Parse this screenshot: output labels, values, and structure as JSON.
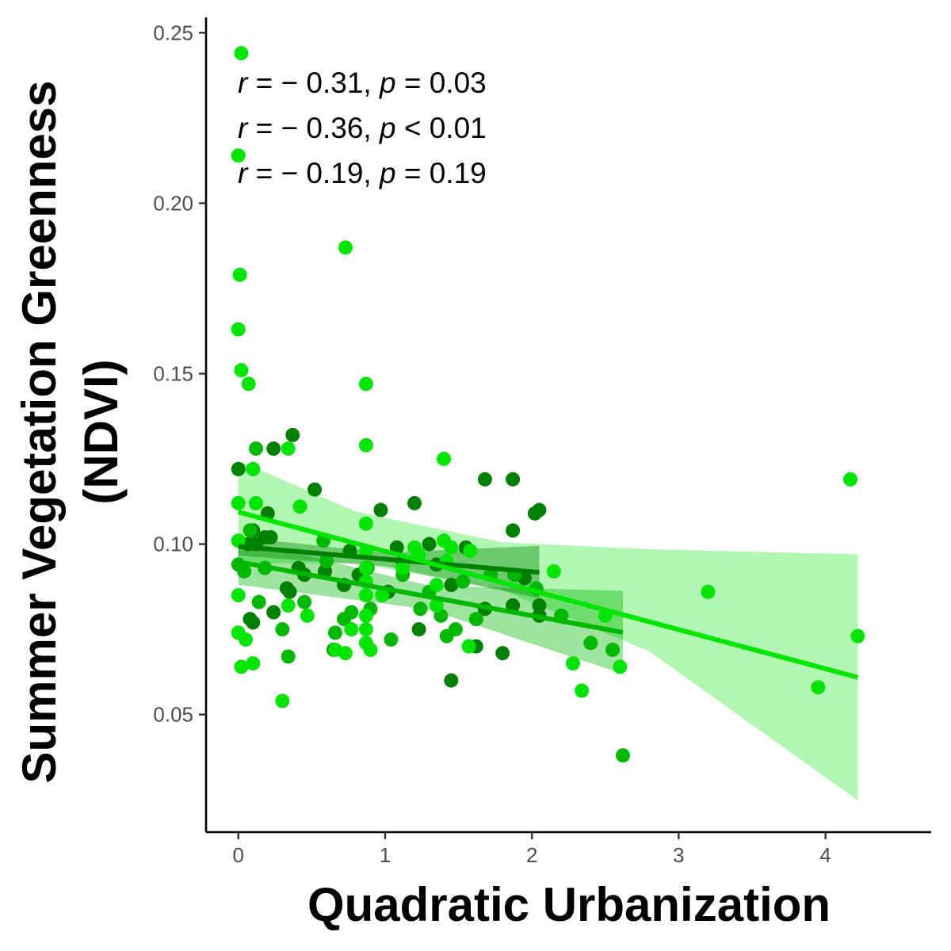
{
  "chart_data": {
    "type": "scatter",
    "xlabel": "Quadratic Urbanization",
    "ylabel_lines": [
      "Summer Vegetation Greenness",
      "(NDVI)"
    ],
    "xlim": [
      -0.22,
      4.72
    ],
    "ylim": [
      0.0155,
      0.2545
    ],
    "x_ticks": [
      0,
      1,
      2,
      3,
      4
    ],
    "x_tick_labels": [
      "0",
      "1",
      "2",
      "3",
      "4"
    ],
    "y_ticks": [
      0.05,
      0.1,
      0.15,
      0.2,
      0.25
    ],
    "y_tick_labels": [
      "0.05",
      "0.10",
      "0.15",
      "0.20",
      "0.25"
    ],
    "grid": false,
    "legend": "none",
    "annotations": [
      {
        "r_label": "r",
        "r_text": " = − 0.31, ",
        "p_label": "p",
        "p_text": " = 0.03"
      },
      {
        "r_label": "r",
        "r_text": " = − 0.36, ",
        "p_label": "p",
        "p_text": " < 0.01"
      },
      {
        "r_label": "r",
        "r_text": " = − 0.19, ",
        "p_label": "p",
        "p_text": " = 0.19"
      }
    ],
    "series": [
      {
        "color": "#008000",
        "band_color": "#008000",
        "fit": {
          "x0": 0.0,
          "y0": 0.0993,
          "x1": 2.05,
          "y1": 0.0917
        },
        "band": [
          [
            0.0,
            0.102,
            0.0966
          ],
          [
            1.0,
            0.0975,
            0.0935
          ],
          [
            2.05,
            0.0995,
            0.0841
          ]
        ],
        "points": [
          [
            0.0,
            0.122
          ],
          [
            0.07,
            0.1
          ],
          [
            0.1,
            0.104
          ],
          [
            0.12,
            0.1
          ],
          [
            0.08,
            0.078
          ],
          [
            0.1,
            0.077
          ],
          [
            0.18,
            0.102
          ],
          [
            0.2,
            0.109
          ],
          [
            0.22,
            0.102
          ],
          [
            0.24,
            0.128
          ],
          [
            0.24,
            0.08
          ],
          [
            0.33,
            0.087
          ],
          [
            0.35,
            0.086
          ],
          [
            0.37,
            0.132
          ],
          [
            0.41,
            0.093
          ],
          [
            0.45,
            0.091
          ],
          [
            0.52,
            0.116
          ],
          [
            0.59,
            0.092
          ],
          [
            0.65,
            0.069
          ],
          [
            0.72,
            0.088
          ],
          [
            0.76,
            0.098
          ],
          [
            0.82,
            0.091
          ],
          [
            0.97,
            0.11
          ],
          [
            1.02,
            0.086
          ],
          [
            1.08,
            0.099
          ],
          [
            1.12,
            0.095
          ],
          [
            1.2,
            0.112
          ],
          [
            1.23,
            0.075
          ],
          [
            1.3,
            0.1
          ],
          [
            1.35,
            0.094
          ],
          [
            1.45,
            0.06
          ],
          [
            1.45,
            0.088
          ],
          [
            1.55,
            0.099
          ],
          [
            1.62,
            0.07
          ],
          [
            1.68,
            0.119
          ],
          [
            1.68,
            0.081
          ],
          [
            1.8,
            0.068
          ],
          [
            1.87,
            0.119
          ],
          [
            1.87,
            0.104
          ],
          [
            1.87,
            0.082
          ],
          [
            1.95,
            0.09
          ],
          [
            2.02,
            0.109
          ],
          [
            2.05,
            0.11
          ],
          [
            2.05,
            0.079
          ],
          [
            2.05,
            0.082
          ]
        ]
      },
      {
        "color": "#00b800",
        "band_color": "#00b800",
        "fit": {
          "x0": 0.0,
          "y0": 0.0948,
          "x1": 2.62,
          "y1": 0.0741
        },
        "band": [
          [
            0.0,
            0.1015,
            0.0881
          ],
          [
            1.3,
            0.0878,
            0.0808
          ],
          [
            2.62,
            0.0863,
            0.0619
          ]
        ],
        "points": [
          [
            0.0,
            0.094
          ],
          [
            0.04,
            0.092
          ],
          [
            0.08,
            0.104
          ],
          [
            0.12,
            0.128
          ],
          [
            0.14,
            0.083
          ],
          [
            0.18,
            0.093
          ],
          [
            0.3,
            0.075
          ],
          [
            0.34,
            0.067
          ],
          [
            0.45,
            0.083
          ],
          [
            0.58,
            0.101
          ],
          [
            0.6,
            0.095
          ],
          [
            0.66,
            0.074
          ],
          [
            0.72,
            0.078
          ],
          [
            0.77,
            0.08
          ],
          [
            0.88,
            0.093
          ],
          [
            0.9,
            0.081
          ],
          [
            1.04,
            0.072
          ],
          [
            1.12,
            0.091
          ],
          [
            1.24,
            0.081
          ],
          [
            1.3,
            0.086
          ],
          [
            1.38,
            0.079
          ],
          [
            1.42,
            0.073
          ],
          [
            1.48,
            0.075
          ],
          [
            1.53,
            0.089
          ],
          [
            1.62,
            0.078
          ],
          [
            1.72,
            0.091
          ],
          [
            1.88,
            0.091
          ],
          [
            2.03,
            0.087
          ],
          [
            2.2,
            0.079
          ],
          [
            2.4,
            0.071
          ],
          [
            2.55,
            0.069
          ],
          [
            2.62,
            0.038
          ]
        ]
      },
      {
        "color": "#00e600",
        "band_color": "#33e833",
        "fit": {
          "x0": 0.0,
          "y0": 0.1094,
          "x1": 4.22,
          "y1": 0.0609
        },
        "band": [
          [
            0.0,
            0.1245,
            0.0943
          ],
          [
            0.8,
            0.1095,
            0.0945
          ],
          [
            1.8,
            0.1005,
            0.0865
          ],
          [
            2.8,
            0.0985,
            0.0685
          ],
          [
            4.22,
            0.097,
            0.0248
          ]
        ],
        "points": [
          [
            0.02,
            0.244
          ],
          [
            0.0,
            0.214
          ],
          [
            0.01,
            0.179
          ],
          [
            0.0,
            0.163
          ],
          [
            0.02,
            0.151
          ],
          [
            0.07,
            0.147
          ],
          [
            0.0,
            0.112
          ],
          [
            0.0,
            0.101
          ],
          [
            0.0,
            0.085
          ],
          [
            0.0,
            0.074
          ],
          [
            0.02,
            0.064
          ],
          [
            0.05,
            0.072
          ],
          [
            0.1,
            0.122
          ],
          [
            0.12,
            0.112
          ],
          [
            0.1,
            0.065
          ],
          [
            0.3,
            0.054
          ],
          [
            0.34,
            0.128
          ],
          [
            0.34,
            0.082
          ],
          [
            0.42,
            0.111
          ],
          [
            0.47,
            0.079
          ],
          [
            0.66,
            0.069
          ],
          [
            0.73,
            0.187
          ],
          [
            0.73,
            0.068
          ],
          [
            0.77,
            0.075
          ],
          [
            0.87,
            0.147
          ],
          [
            0.87,
            0.129
          ],
          [
            0.87,
            0.106
          ],
          [
            0.87,
            0.098
          ],
          [
            0.87,
            0.093
          ],
          [
            0.87,
            0.089
          ],
          [
            0.87,
            0.085
          ],
          [
            0.87,
            0.079
          ],
          [
            0.87,
            0.075
          ],
          [
            0.87,
            0.071
          ],
          [
            0.9,
            0.069
          ],
          [
            0.98,
            0.085
          ],
          [
            1.12,
            0.093
          ],
          [
            1.2,
            0.099
          ],
          [
            1.23,
            0.097
          ],
          [
            1.35,
            0.088
          ],
          [
            1.35,
            0.082
          ],
          [
            1.4,
            0.125
          ],
          [
            1.4,
            0.101
          ],
          [
            1.42,
            0.095
          ],
          [
            1.45,
            0.099
          ],
          [
            1.57,
            0.07
          ],
          [
            1.58,
            0.098
          ],
          [
            2.15,
            0.092
          ],
          [
            2.28,
            0.065
          ],
          [
            2.34,
            0.057
          ],
          [
            2.5,
            0.079
          ],
          [
            2.6,
            0.064
          ],
          [
            3.2,
            0.086
          ],
          [
            3.95,
            0.058
          ],
          [
            4.17,
            0.119
          ],
          [
            4.22,
            0.073
          ]
        ]
      }
    ]
  }
}
